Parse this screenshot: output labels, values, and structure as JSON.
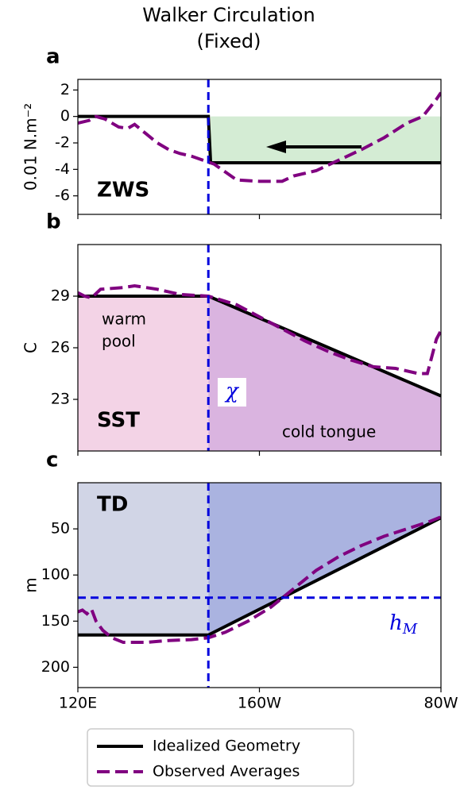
{
  "title": "Walker Circulation",
  "subtitle": "(Fixed)",
  "x_axis": {
    "xlim": [
      120,
      280
    ],
    "xticks": [
      {
        "value": 120,
        "label": "120E"
      },
      {
        "value": 200,
        "label": "160W"
      },
      {
        "value": 280,
        "label": "80W"
      }
    ],
    "chi_x": 177.5
  },
  "chart_data": [
    {
      "type": "line",
      "label": "a",
      "ylabel": "0.01 N.m⁻²",
      "ylim": [
        -7.4,
        2.8
      ],
      "yticks": [
        2,
        0,
        -2,
        -4,
        -6
      ],
      "fill": {
        "to": "zero",
        "right_color": "#d4ecd4"
      },
      "arrow": true,
      "annotations": [
        {
          "text": "ZWS"
        }
      ],
      "series": [
        {
          "name": "Idealized Geometry",
          "color": "#000000",
          "dash": false,
          "x": [
            120,
            177.5,
            178.5,
            280
          ],
          "values": [
            0,
            0,
            -3.5,
            -3.5
          ]
        },
        {
          "name": "Observed Averages",
          "color": "#800080",
          "dash": true,
          "x": [
            120,
            125,
            128,
            132,
            138,
            142,
            145,
            150,
            155,
            160,
            165,
            170,
            175,
            180,
            185,
            190,
            200,
            210,
            215,
            225,
            235,
            245,
            255,
            265,
            272,
            278,
            280
          ],
          "values": [
            -0.5,
            -0.3,
            0,
            -0.2,
            -0.8,
            -0.9,
            -0.6,
            -1.3,
            -2.0,
            -2.5,
            -2.8,
            -3.0,
            -3.3,
            -3.6,
            -4.2,
            -4.8,
            -4.9,
            -4.9,
            -4.5,
            -4.1,
            -3.3,
            -2.5,
            -1.6,
            -0.5,
            0.0,
            1.3,
            1.8
          ]
        }
      ]
    },
    {
      "type": "line",
      "label": "b",
      "ylabel": "C",
      "ylim": [
        20,
        32
      ],
      "yticks": [
        29,
        26,
        23
      ],
      "fill": {
        "to": "bottom",
        "left_color": "#f3d3e6",
        "right_color": "#dab4e0"
      },
      "annotations": [
        {
          "text": "warm"
        },
        {
          "text": "pool"
        },
        {
          "text": "SST"
        },
        {
          "text": "cold tongue"
        },
        {
          "text": "χ"
        }
      ],
      "series": [
        {
          "color": "#000000",
          "dash": false,
          "x": [
            120,
            177.5,
            280
          ],
          "values": [
            29,
            29,
            23.2
          ]
        },
        {
          "color": "#800080",
          "dash": true,
          "x": [
            120,
            123,
            126,
            130,
            140,
            145,
            155,
            165,
            177.5,
            190,
            200,
            210,
            220,
            230,
            240,
            250,
            260,
            270,
            274,
            276,
            278,
            280
          ],
          "values": [
            29.2,
            29.0,
            28.9,
            29.4,
            29.5,
            29.6,
            29.4,
            29.1,
            29.0,
            28.5,
            27.8,
            27.1,
            26.4,
            25.8,
            25.3,
            24.9,
            24.8,
            24.5,
            24.5,
            25.5,
            26.5,
            27.0
          ]
        }
      ]
    },
    {
      "type": "line",
      "label": "c",
      "ylabel": "m",
      "ylim": [
        222,
        0
      ],
      "yticks": [
        50,
        100,
        150,
        200
      ],
      "hline": 124.5,
      "fill": {
        "to": "top",
        "left_color": "#d1d5e6",
        "right_color": "#aab3e0"
      },
      "annotations": [
        {
          "text": "TD"
        },
        {
          "text": "h",
          "sub": "M"
        }
      ],
      "series": [
        {
          "color": "#000000",
          "dash": false,
          "x": [
            120,
            177.5,
            280
          ],
          "values": [
            165,
            165,
            38
          ]
        },
        {
          "color": "#800080",
          "dash": true,
          "x": [
            120,
            122,
            124,
            126,
            128,
            131,
            135,
            140,
            150,
            160,
            170,
            177.5,
            185,
            195,
            205,
            215,
            225,
            235,
            245,
            255,
            265,
            275,
            280
          ],
          "values": [
            140,
            138,
            142,
            137,
            150,
            160,
            168,
            173,
            173,
            171,
            170,
            168,
            162,
            150,
            135,
            115,
            95,
            80,
            68,
            58,
            50,
            42,
            37
          ]
        }
      ]
    }
  ]
}
